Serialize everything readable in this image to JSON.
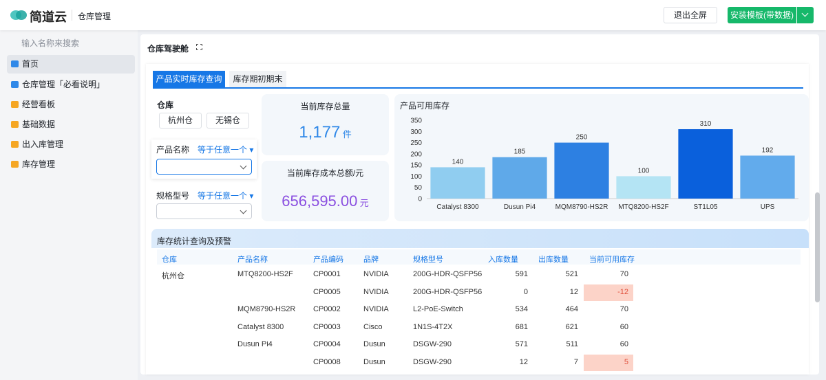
{
  "header": {
    "brand": "简道云",
    "app": "仓库管理",
    "exit_button": "退出全屏",
    "install_button": "安装模板(带数据)"
  },
  "sidebar": {
    "search_placeholder": "输入名称来搜索",
    "items": [
      "首页",
      "仓库管理「必看说明」",
      "经营看板",
      "基础数据",
      "出入库管理",
      "库存管理"
    ]
  },
  "dashboard": {
    "title": "仓库驾驶舱",
    "tabs": [
      "产品实时库存查询",
      "库存期初期末"
    ],
    "filters": {
      "warehouse_label": "仓库",
      "warehouses": [
        "杭州仓",
        "无锡仓"
      ],
      "product_label": "产品名称",
      "product_mode": "等于任意一个",
      "spec_label": "规格型号",
      "spec_mode": "等于任意一个"
    },
    "kpis": [
      {
        "label": "当前库存总量",
        "value": "1,177",
        "unit": "件",
        "color": "#2f88e8"
      },
      {
        "label": "当前库存成本总额/元",
        "value": "656,595.00",
        "unit": "元",
        "color": "#8a4fe0"
      }
    ]
  },
  "chart_data": {
    "type": "bar",
    "title": "产品可用库存",
    "categories": [
      "Catalyst 8300",
      "Dusun Pi4",
      "MQM8790-HS2R",
      "MTQ8200-HS2F",
      "ST1L05",
      "UPS"
    ],
    "values": [
      140,
      185,
      250,
      100,
      310,
      192
    ],
    "colors": [
      "#90cdf0",
      "#5fa9e9",
      "#2d80e2",
      "#b4e4f4",
      "#0a60dc",
      "#62abec"
    ],
    "ylim": [
      0,
      350
    ],
    "yticks": [
      0,
      50,
      100,
      150,
      200,
      250,
      300,
      350
    ],
    "grid": false
  },
  "table": {
    "title": "库存统计查询及预警",
    "columns": [
      "仓库",
      "产品名称",
      "产品编码",
      "品牌",
      "规格型号",
      "入库数量",
      "出库数量",
      "当前可用库存"
    ],
    "alert_color": "#fcd3c8",
    "rows": [
      {
        "cells": [
          "杭州仓",
          "MTQ8200-HS2F",
          "CP0001",
          "NVIDIA",
          "200G-HDR-QSFP56",
          591,
          521,
          70
        ],
        "alert": false
      },
      {
        "cells": [
          null,
          null,
          "CP0005",
          "NVIDIA",
          "200G-HDR-QSFP56",
          0,
          12,
          -12
        ],
        "alert": true
      },
      {
        "cells": [
          null,
          "MQM8790-HS2R",
          "CP0002",
          "NVIDIA",
          "L2-PoE-Switch",
          534,
          464,
          70
        ],
        "alert": false
      },
      {
        "cells": [
          null,
          "Catalyst 8300",
          "CP0003",
          "Cisco",
          "1N1S-4T2X",
          681,
          621,
          60
        ],
        "alert": false
      },
      {
        "cells": [
          null,
          "Dusun Pi4",
          "CP0004",
          "Dusun",
          "DSGW-290",
          571,
          511,
          60
        ],
        "alert": false
      },
      {
        "cells": [
          null,
          null,
          "CP0008",
          "Dusun",
          "DSGW-290",
          12,
          7,
          5
        ],
        "alert": true
      }
    ]
  }
}
